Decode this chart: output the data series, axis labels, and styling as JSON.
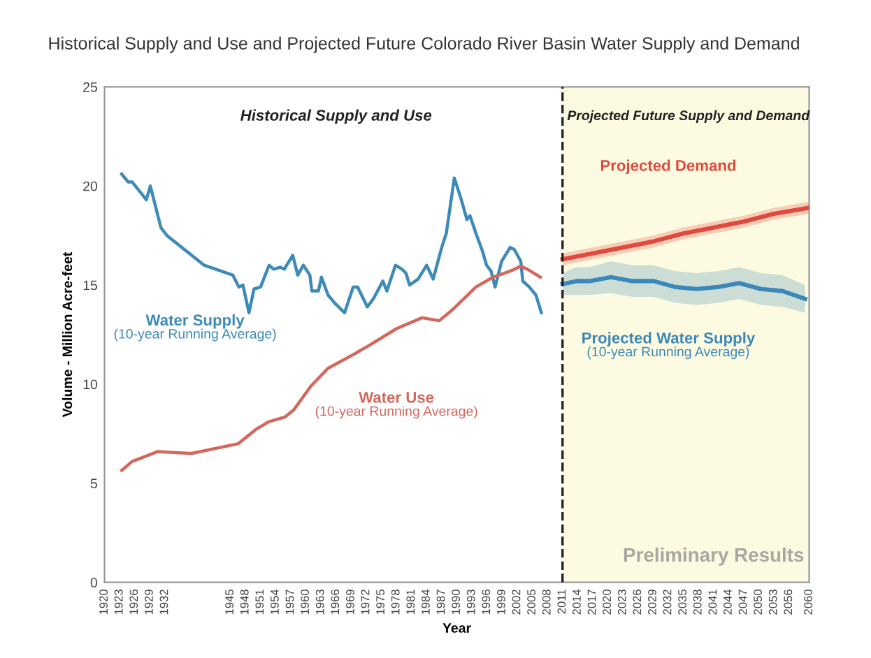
{
  "chart_data": {
    "type": "line",
    "title": "Historical Supply and Use and Projected Future Colorado River Basin Water Supply and Demand",
    "xlabel": "Year",
    "ylabel": "Volume - Million Acre-feet",
    "series": [
      {
        "name": "Water Supply (10-year Running Average)",
        "color": "#3d8ab8",
        "x": [
          1923.4,
          1924.7,
          1925.5,
          1927.4,
          1928.3,
          1929.1,
          1931.2,
          1932.4,
          1939.8,
          1945.5,
          1946.7,
          1947.5,
          1948.7,
          1949.7,
          1951,
          1952.7,
          1953.6,
          1954.9,
          1955.7,
          1957.4,
          1958.4,
          1959.5,
          1960.8,
          1961.2,
          1962.5,
          1963.1,
          1964.4,
          1965.7,
          1967.7,
          1969.4,
          1970.3,
          1972.2,
          1973.4,
          1975.3,
          1976.1,
          1977.8,
          1979.1,
          1979.9,
          1980.6,
          1982.3,
          1984,
          1985.3,
          1987,
          1987.9,
          1989.5,
          1990.9,
          1992,
          1992.6,
          1993.8,
          1995.1,
          1995.9,
          1996.8,
          1997.6,
          1998.9,
          2000.6,
          2001.4,
          2002.7,
          2003.1,
          2004.4,
          2005.7,
          2006.8
        ],
        "values": [
          20.6,
          20.2,
          20.2,
          19.6,
          19.3,
          20.0,
          17.9,
          17.5,
          16.0,
          15.5,
          14.9,
          15.0,
          13.6,
          14.8,
          14.9,
          16.0,
          15.8,
          15.9,
          15.8,
          16.5,
          15.5,
          16.0,
          15.5,
          14.7,
          14.7,
          15.4,
          14.5,
          14.1,
          13.6,
          14.9,
          14.9,
          13.9,
          14.3,
          15.2,
          14.7,
          16.0,
          15.8,
          15.6,
          15.0,
          15.3,
          16.0,
          15.3,
          16.9,
          17.6,
          20.4,
          19.3,
          18.3,
          18.5,
          17.6,
          16.7,
          16.0,
          15.7,
          14.9,
          16.2,
          16.9,
          16.8,
          16.2,
          15.2,
          14.9,
          14.5,
          13.6
        ]
      },
      {
        "name": "Water Use (10-year Running Average)",
        "color": "#d4675c",
        "x": [
          1923.4,
          1925.5,
          1930.6,
          1937.2,
          1946.6,
          1950,
          1952.6,
          1955.9,
          1957.6,
          1961,
          1964.4,
          1969.5,
          1972.9,
          1978,
          1983.1,
          1986.5,
          1989.1,
          1993.8,
          1997.2,
          2000.6,
          2002.7,
          2004,
          2006.6
        ],
        "values": [
          5.65,
          6.1,
          6.6,
          6.5,
          7.0,
          7.7,
          8.1,
          8.35,
          8.7,
          9.9,
          10.8,
          11.5,
          12.0,
          12.8,
          13.35,
          13.2,
          13.75,
          14.9,
          15.4,
          15.7,
          15.95,
          15.8,
          15.4
        ]
      },
      {
        "name": "Projected Demand",
        "color": "#e2493d",
        "x": [
          2011,
          2017,
          2023,
          2029,
          2035,
          2041,
          2047,
          2053,
          2060
        ],
        "values": [
          16.3,
          16.6,
          16.9,
          17.2,
          17.6,
          17.9,
          18.2,
          18.6,
          18.9
        ],
        "lower": [
          16.0,
          16.3,
          16.6,
          16.9,
          17.3,
          17.6,
          17.9,
          18.3,
          18.6
        ],
        "upper": [
          16.6,
          16.9,
          17.2,
          17.5,
          17.9,
          18.2,
          18.5,
          18.9,
          19.2
        ]
      },
      {
        "name": "Projected Water Supply (10-year Running Average)",
        "color": "#3b88b8",
        "x": [
          2011,
          2013.8,
          2016.4,
          2020.6,
          2024.9,
          2029.1,
          2033.4,
          2037.6,
          2041.9,
          2046.1,
          2050.4,
          2054.7,
          2059.2
        ],
        "values": [
          15.05,
          15.2,
          15.2,
          15.4,
          15.2,
          15.2,
          14.9,
          14.8,
          14.9,
          15.1,
          14.8,
          14.7,
          14.3
        ],
        "lower": [
          14.5,
          14.5,
          14.5,
          14.6,
          14.4,
          14.4,
          14.1,
          14.0,
          14.1,
          14.3,
          14.0,
          13.9,
          13.6
        ],
        "upper": [
          15.6,
          15.9,
          15.9,
          16.2,
          16.0,
          16.0,
          15.7,
          15.6,
          15.7,
          15.9,
          15.6,
          15.5,
          15.0
        ]
      }
    ],
    "xlim": [
      1920,
      2060
    ],
    "ylim": [
      0,
      25
    ],
    "yticks": [
      0,
      5,
      10,
      15,
      20,
      25
    ],
    "xticks": [
      1920,
      1923,
      1926,
      1929,
      1932,
      1945,
      1948,
      1951,
      1954,
      1957,
      1960,
      1963,
      1966,
      1969,
      1972,
      1975,
      1978,
      1981,
      1984,
      1987,
      1990,
      1993,
      1996,
      1999,
      2002,
      2005,
      2008,
      2011,
      2014,
      2017,
      2020,
      2023,
      2026,
      2029,
      2032,
      2035,
      2038,
      2041,
      2044,
      2047,
      2050,
      2053,
      2056,
      2060
    ],
    "ref_lines": [
      {
        "axis": "x",
        "value": 2011,
        "color": "#222222",
        "line_style": "dashed"
      }
    ],
    "bands": [
      {
        "axis": "x",
        "from": 2011,
        "to": 2060,
        "color": "#fcfae0"
      }
    ],
    "annotations": [
      "Historical Supply and Use",
      "Projected Future Supply and Demand",
      "Preliminary Results"
    ],
    "grid": false,
    "legend": false,
    "marker": "none",
    "line_style": "solid"
  }
}
